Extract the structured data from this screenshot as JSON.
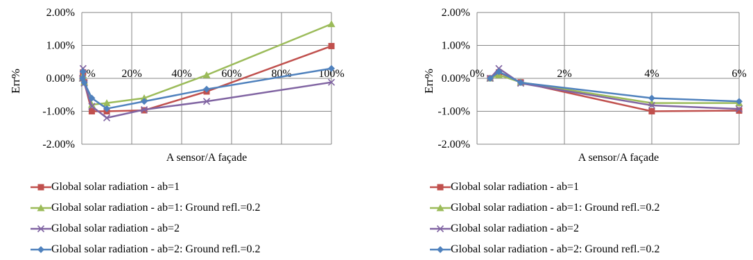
{
  "charts": [
    {
      "y_ticks": [
        "2.00%",
        "1.00%",
        "0.00%",
        "-1.00%",
        "-2.00%"
      ],
      "x_ticks": [
        "0%",
        "20%",
        "40%",
        "60%",
        "80%",
        "100%"
      ],
      "ylabel": "Err%",
      "xlabel": "A sensor/A façade"
    },
    {
      "y_ticks": [
        "2.00%",
        "1.00%",
        "0.00%",
        "-1.00%",
        "-2.00%"
      ],
      "x_ticks": [
        "0%",
        "2%",
        "4%",
        "6%"
      ],
      "ylabel": "Err%",
      "xlabel": "A sensor/A façade"
    }
  ],
  "legend": [
    "Global solar radiation - ab=1",
    "Global solar radiation - ab=1: Ground refl.=0.2",
    "Global solar radiation - ab=2",
    "Global solar radiation - ab=2: Ground refl.=0.2"
  ],
  "chart_data": [
    {
      "type": "line",
      "xlabel": "A sensor/A façade",
      "ylabel": "Err%",
      "xlim": [
        0,
        1
      ],
      "ylim": [
        -2,
        2
      ],
      "y_unit": "%",
      "grid": true,
      "legend_position": "bottom",
      "series": [
        {
          "name": "Global solar radiation - ab=1",
          "color": "#c0504d",
          "marker": "square",
          "x": [
            0.003,
            0.005,
            0.01,
            0.04,
            0.1,
            0.25,
            0.5,
            1.0
          ],
          "y": [
            0.0,
            0.18,
            -0.12,
            -1.0,
            -1.0,
            -0.97,
            -0.4,
            0.98
          ]
        },
        {
          "name": "Global solar radiation - ab=1: Ground refl.=0.2",
          "color": "#9bbb59",
          "marker": "triangle",
          "x": [
            0.003,
            0.005,
            0.01,
            0.04,
            0.1,
            0.25,
            0.5,
            1.0
          ],
          "y": [
            0.0,
            0.1,
            -0.12,
            -0.8,
            -0.75,
            -0.6,
            0.1,
            1.65
          ]
        },
        {
          "name": "Global solar radiation - ab=2",
          "color": "#8064a2",
          "marker": "x",
          "x": [
            0.003,
            0.005,
            0.01,
            0.04,
            0.1,
            0.25,
            0.5,
            1.0
          ],
          "y": [
            0.0,
            0.3,
            -0.15,
            -0.85,
            -1.2,
            -0.95,
            -0.7,
            -0.12
          ]
        },
        {
          "name": "Global solar radiation - ab=2: Ground refl.=0.2",
          "color": "#4f81bd",
          "marker": "diamond",
          "x": [
            0.003,
            0.005,
            0.01,
            0.04,
            0.1,
            0.25,
            0.5,
            1.0
          ],
          "y": [
            0.0,
            0.2,
            -0.13,
            -0.6,
            -0.92,
            -0.7,
            -0.33,
            0.3
          ]
        }
      ]
    },
    {
      "type": "line",
      "xlabel": "A sensor/A façade",
      "ylabel": "Err%",
      "xlim": [
        0,
        0.06
      ],
      "ylim": [
        -2,
        2
      ],
      "y_unit": "%",
      "grid": true,
      "legend_position": "bottom",
      "series": [
        {
          "name": "Global solar radiation - ab=1",
          "color": "#c0504d",
          "marker": "square",
          "x": [
            0.003,
            0.005,
            0.01,
            0.04,
            0.06
          ],
          "y": [
            0.0,
            0.18,
            -0.12,
            -1.0,
            -0.98
          ]
        },
        {
          "name": "Global solar radiation - ab=1: Ground refl.=0.2",
          "color": "#9bbb59",
          "marker": "triangle",
          "x": [
            0.003,
            0.005,
            0.01,
            0.04,
            0.06
          ],
          "y": [
            0.0,
            0.1,
            -0.12,
            -0.75,
            -0.75
          ]
        },
        {
          "name": "Global solar radiation - ab=2",
          "color": "#8064a2",
          "marker": "x",
          "x": [
            0.003,
            0.005,
            0.01,
            0.04,
            0.06
          ],
          "y": [
            0.0,
            0.3,
            -0.15,
            -0.82,
            -0.93
          ]
        },
        {
          "name": "Global solar radiation - ab=2: Ground refl.=0.2",
          "color": "#4f81bd",
          "marker": "diamond",
          "x": [
            0.003,
            0.005,
            0.01,
            0.04,
            0.06
          ],
          "y": [
            0.0,
            0.2,
            -0.13,
            -0.6,
            -0.7
          ]
        }
      ]
    }
  ]
}
